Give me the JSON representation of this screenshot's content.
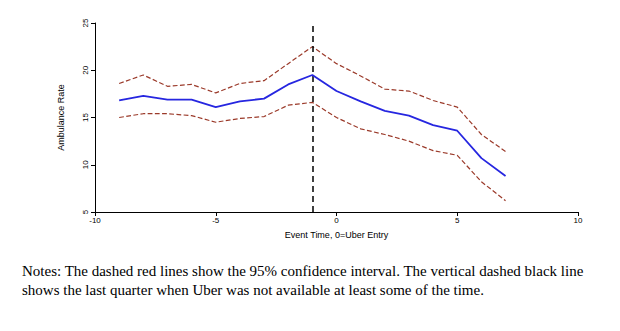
{
  "chart_data": {
    "type": "line",
    "x_label": "Event Time, 0=Uber Entry",
    "y_label": "Ambulance Rate",
    "x": [
      -9,
      -8,
      -7,
      -6,
      -5,
      -4,
      -3,
      -2,
      -1,
      0,
      1,
      2,
      3,
      4,
      5,
      6,
      7
    ],
    "series": [
      {
        "color": "#9b3a2a",
        "line_style": "dashed",
        "values": [
          18.6,
          19.5,
          18.3,
          18.5,
          17.6,
          18.6,
          18.9,
          20.7,
          22.5,
          20.7,
          19.4,
          18.0,
          17.8,
          16.8,
          16.1,
          13.2,
          11.4
        ]
      },
      {
        "color": "#9b3a2a",
        "line_style": "dashed",
        "values": [
          15.0,
          15.4,
          15.4,
          15.2,
          14.5,
          14.9,
          15.1,
          16.3,
          16.6,
          15.0,
          13.8,
          13.2,
          12.5,
          11.5,
          11.0,
          8.2,
          6.2
        ]
      },
      {
        "color": "#2626e0",
        "line_style": "solid",
        "values": [
          16.8,
          17.3,
          16.9,
          16.9,
          16.1,
          16.7,
          17.0,
          18.5,
          19.5,
          17.8,
          16.7,
          15.7,
          15.2,
          14.2,
          13.6,
          10.7,
          8.8
        ]
      }
    ],
    "vline": -1,
    "xlim": [
      -10,
      10
    ],
    "xticks": [
      -10,
      -5,
      0,
      5,
      10
    ],
    "ylim": [
      5,
      25
    ],
    "yticks": [
      5,
      10,
      15,
      20,
      25
    ],
    "grid": false,
    "notes": "Notes: The dashed red lines show the 95% confidence interval.  The vertical dashed black line shows the last quarter when Uber was not available at least some of the time."
  }
}
